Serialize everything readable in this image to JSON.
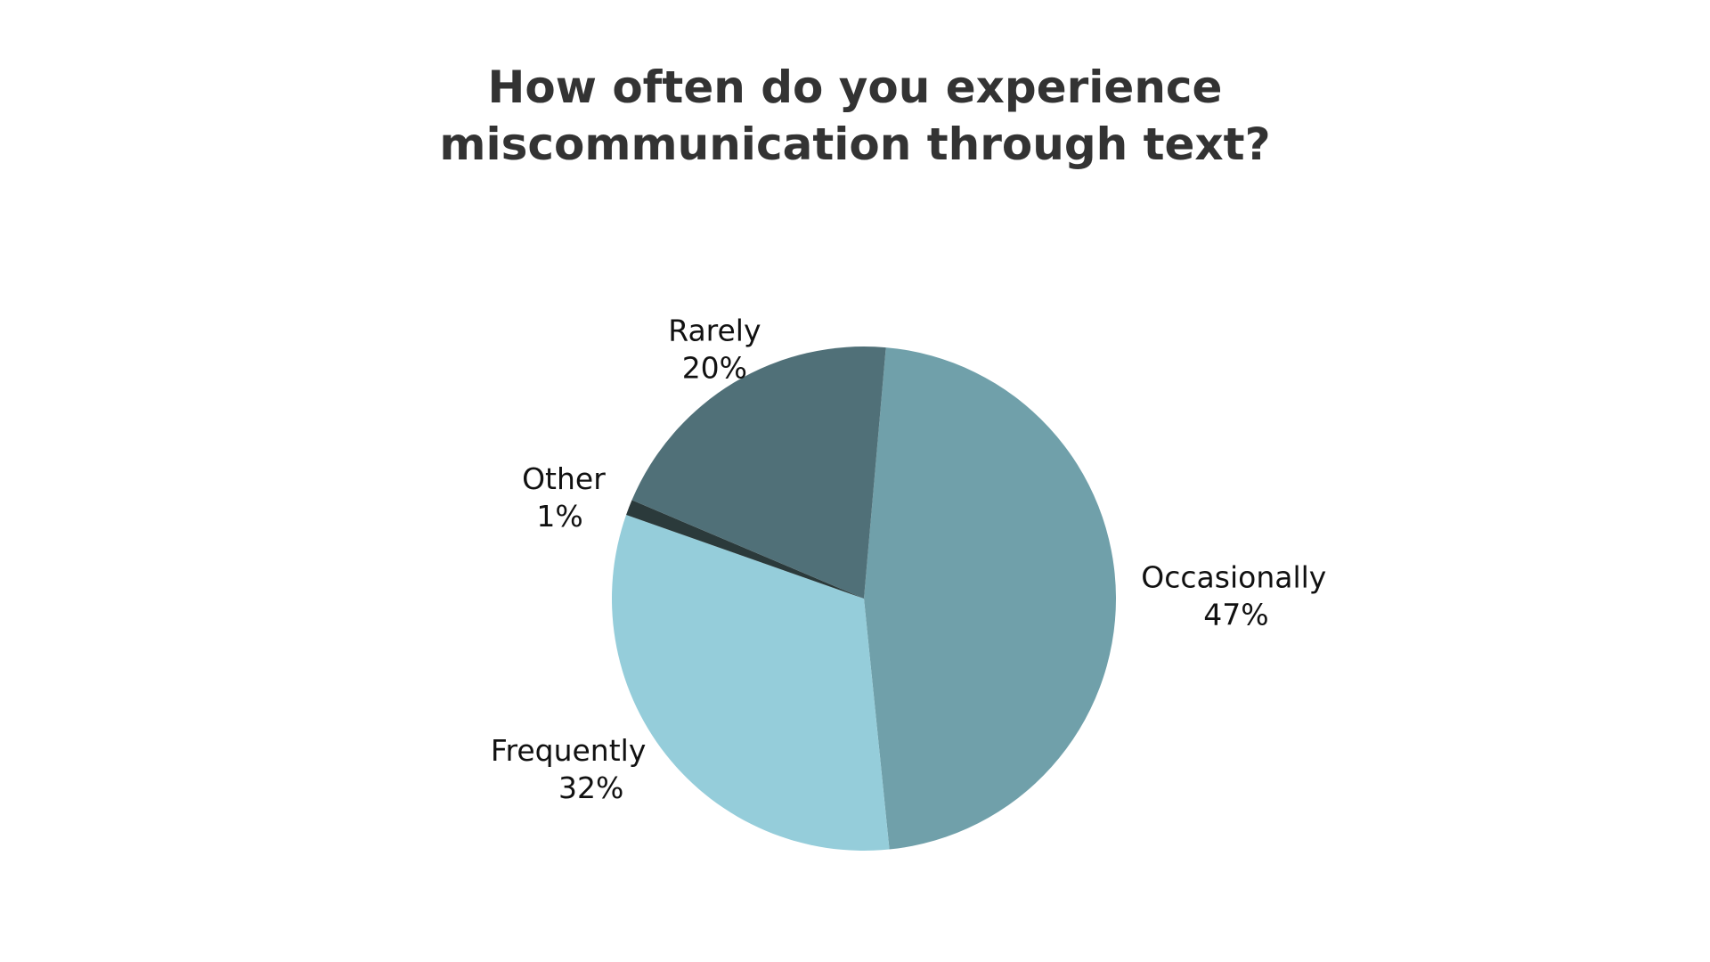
{
  "chart_data": {
    "type": "pie",
    "title": "How often do you experience miscommunication through text?",
    "categories": [
      "Occasionally",
      "Frequently",
      "Other",
      "Rarely"
    ],
    "values": [
      47,
      32,
      1,
      20
    ],
    "value_labels": [
      "47%",
      "32%",
      "1%",
      "20%"
    ],
    "colors": [
      "#70a0aa",
      "#95cdda",
      "#2b3a3b",
      "#507078"
    ]
  }
}
